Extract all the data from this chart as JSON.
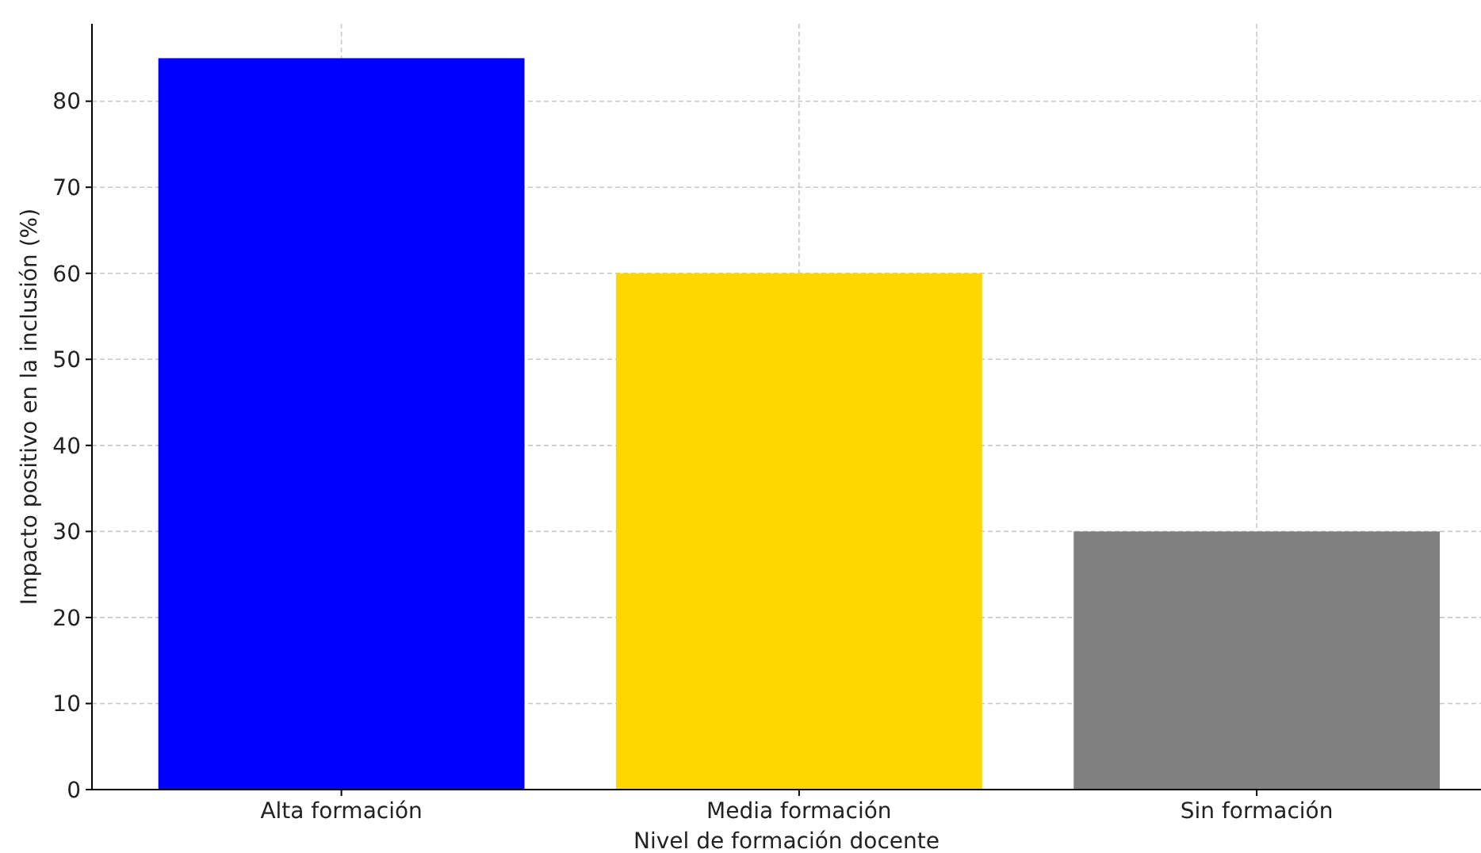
{
  "chart_data": {
    "type": "bar",
    "xlabel": "Nivel de formación docente",
    "ylabel": "Impacto positivo en la inclusión (%)",
    "categories": [
      "Alta formación",
      "Media formación",
      "Sin formación"
    ],
    "values": [
      85,
      60,
      30
    ],
    "colors": [
      "#0000ff",
      "#ffd700",
      "#808080"
    ],
    "ylim": [
      0,
      89
    ],
    "yticks": [
      0,
      10,
      20,
      30,
      40,
      50,
      60,
      70,
      80
    ],
    "grid": true
  }
}
